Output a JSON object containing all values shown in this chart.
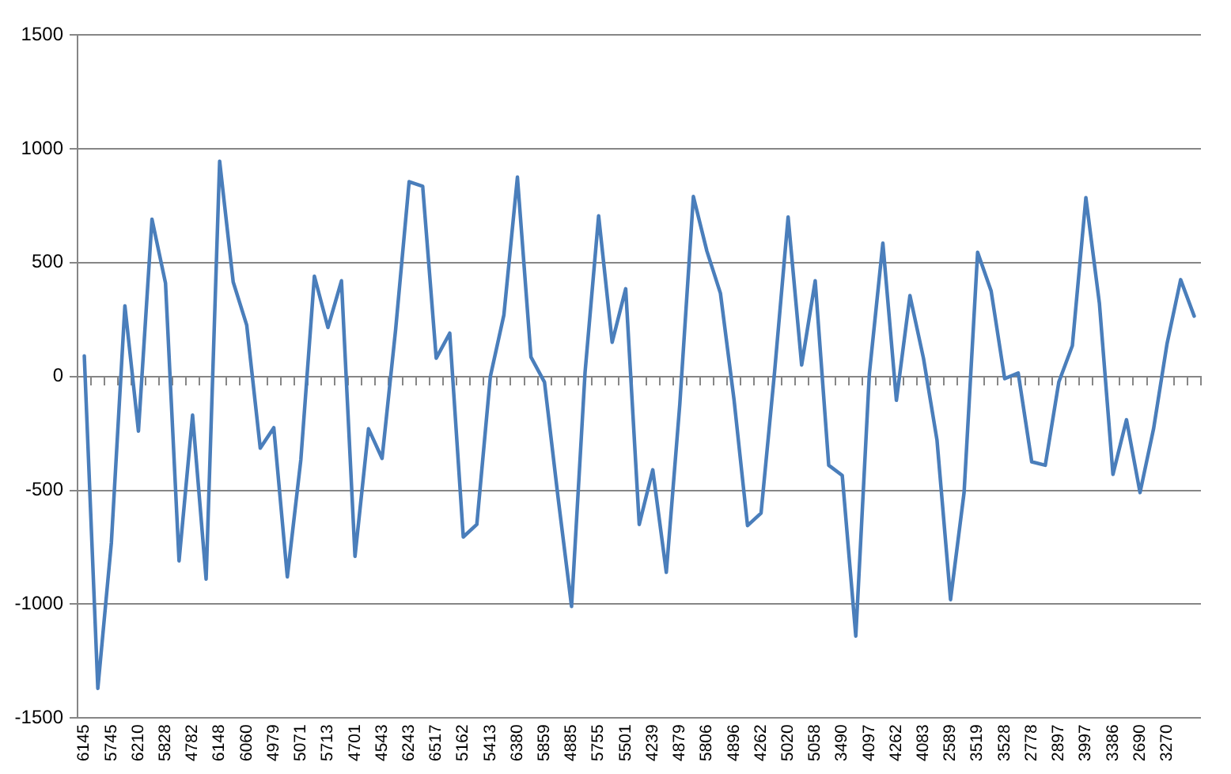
{
  "chart_data": {
    "type": "line",
    "categories": [
      "6145",
      null,
      "5745",
      null,
      "6210",
      null,
      "5828",
      null,
      "4782",
      null,
      "6148",
      null,
      "6060",
      null,
      "4979",
      null,
      "5071",
      null,
      "5713",
      null,
      "4701",
      null,
      "4543",
      null,
      "6243",
      null,
      "6517",
      null,
      "5162",
      null,
      "5413",
      null,
      "6380",
      null,
      "5859",
      null,
      "4885",
      null,
      "5755",
      null,
      "5501",
      null,
      "4239",
      null,
      "4879",
      null,
      "5806",
      null,
      "4896",
      null,
      "4262",
      null,
      "5020",
      null,
      "5058",
      null,
      "3490",
      null,
      "4097",
      null,
      "4262",
      null,
      "4083",
      null,
      "2589",
      null,
      "3519",
      null,
      "3528",
      null,
      "2778",
      null,
      "2897",
      null,
      "3997",
      null,
      "3386",
      null,
      "2690",
      null,
      "3270",
      null,
      null
    ],
    "values": [
      90,
      -1370,
      -730,
      310,
      -240,
      690,
      410,
      -810,
      -170,
      -890,
      945,
      415,
      225,
      -315,
      -225,
      -880,
      -365,
      440,
      215,
      420,
      -790,
      -230,
      -360,
      205,
      855,
      835,
      80,
      190,
      -705,
      -650,
      0,
      270,
      875,
      85,
      -25,
      -530,
      -1010,
      20,
      705,
      150,
      385,
      -650,
      -410,
      -860,
      -120,
      790,
      550,
      365,
      -100,
      -655,
      -600,
      20,
      700,
      50,
      420,
      -390,
      -435,
      -1140,
      10,
      585,
      -105,
      355,
      80,
      -280,
      -980,
      -510,
      545,
      375,
      -10,
      15,
      -375,
      -390,
      -25,
      135,
      785,
      320,
      -430,
      -190,
      -510,
      -230,
      145,
      425,
      265
    ],
    "color": "#4a7ebb",
    "ylim": [
      -1500,
      1500
    ],
    "yticks": [
      -1500,
      -1000,
      -500,
      0,
      500,
      1000,
      1500
    ],
    "grid": "y",
    "marker": "none",
    "line_style": "solid"
  }
}
